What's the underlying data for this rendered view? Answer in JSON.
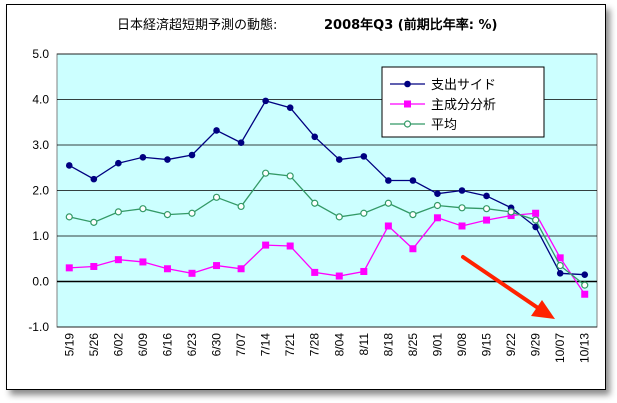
{
  "chart_data": {
    "type": "line",
    "title": "日本経済超短期予測の動態:",
    "title_period": "2008年Q3 (前期比年率: %)",
    "categories": [
      "5/19",
      "5/26",
      "6/02",
      "6/09",
      "6/16",
      "6/23",
      "6/30",
      "7/07",
      "7/14",
      "7/21",
      "7/28",
      "8/04",
      "8/11",
      "8/18",
      "8/25",
      "9/01",
      "9/08",
      "9/15",
      "9/22",
      "9/29",
      "10/07",
      "10/13"
    ],
    "ylim": [
      -1.0,
      5.0
    ],
    "yticks": [
      "5.0",
      "4.0",
      "3.0",
      "2.0",
      "1.0",
      "0.0",
      "-1.0"
    ],
    "grid": true,
    "plot_background": "#ccffff",
    "legend_position": "top-right",
    "series": [
      {
        "name": "支出サイド",
        "color": "#000080",
        "marker": "circle-filled",
        "values": [
          2.55,
          2.25,
          2.6,
          2.73,
          2.68,
          2.78,
          3.32,
          3.05,
          3.97,
          3.82,
          3.18,
          2.68,
          2.75,
          2.22,
          2.22,
          1.93,
          2.0,
          1.88,
          1.62,
          1.2,
          0.18,
          0.15
        ]
      },
      {
        "name": "主成分分析",
        "color": "#ff00ff",
        "marker": "square-filled",
        "values": [
          0.3,
          0.33,
          0.48,
          0.43,
          0.28,
          0.18,
          0.35,
          0.28,
          0.8,
          0.78,
          0.2,
          0.12,
          0.22,
          1.22,
          0.72,
          1.4,
          1.22,
          1.35,
          1.45,
          1.5,
          0.52,
          -0.28
        ]
      },
      {
        "name": "平均",
        "color": "#339966",
        "marker": "circle-open",
        "values": [
          1.42,
          1.3,
          1.53,
          1.6,
          1.47,
          1.5,
          1.85,
          1.65,
          2.38,
          2.32,
          1.72,
          1.42,
          1.5,
          1.72,
          1.47,
          1.67,
          1.62,
          1.6,
          1.53,
          1.35,
          0.35,
          -0.08
        ]
      }
    ],
    "annotation": {
      "type": "arrow",
      "color": "#ff2200"
    }
  }
}
